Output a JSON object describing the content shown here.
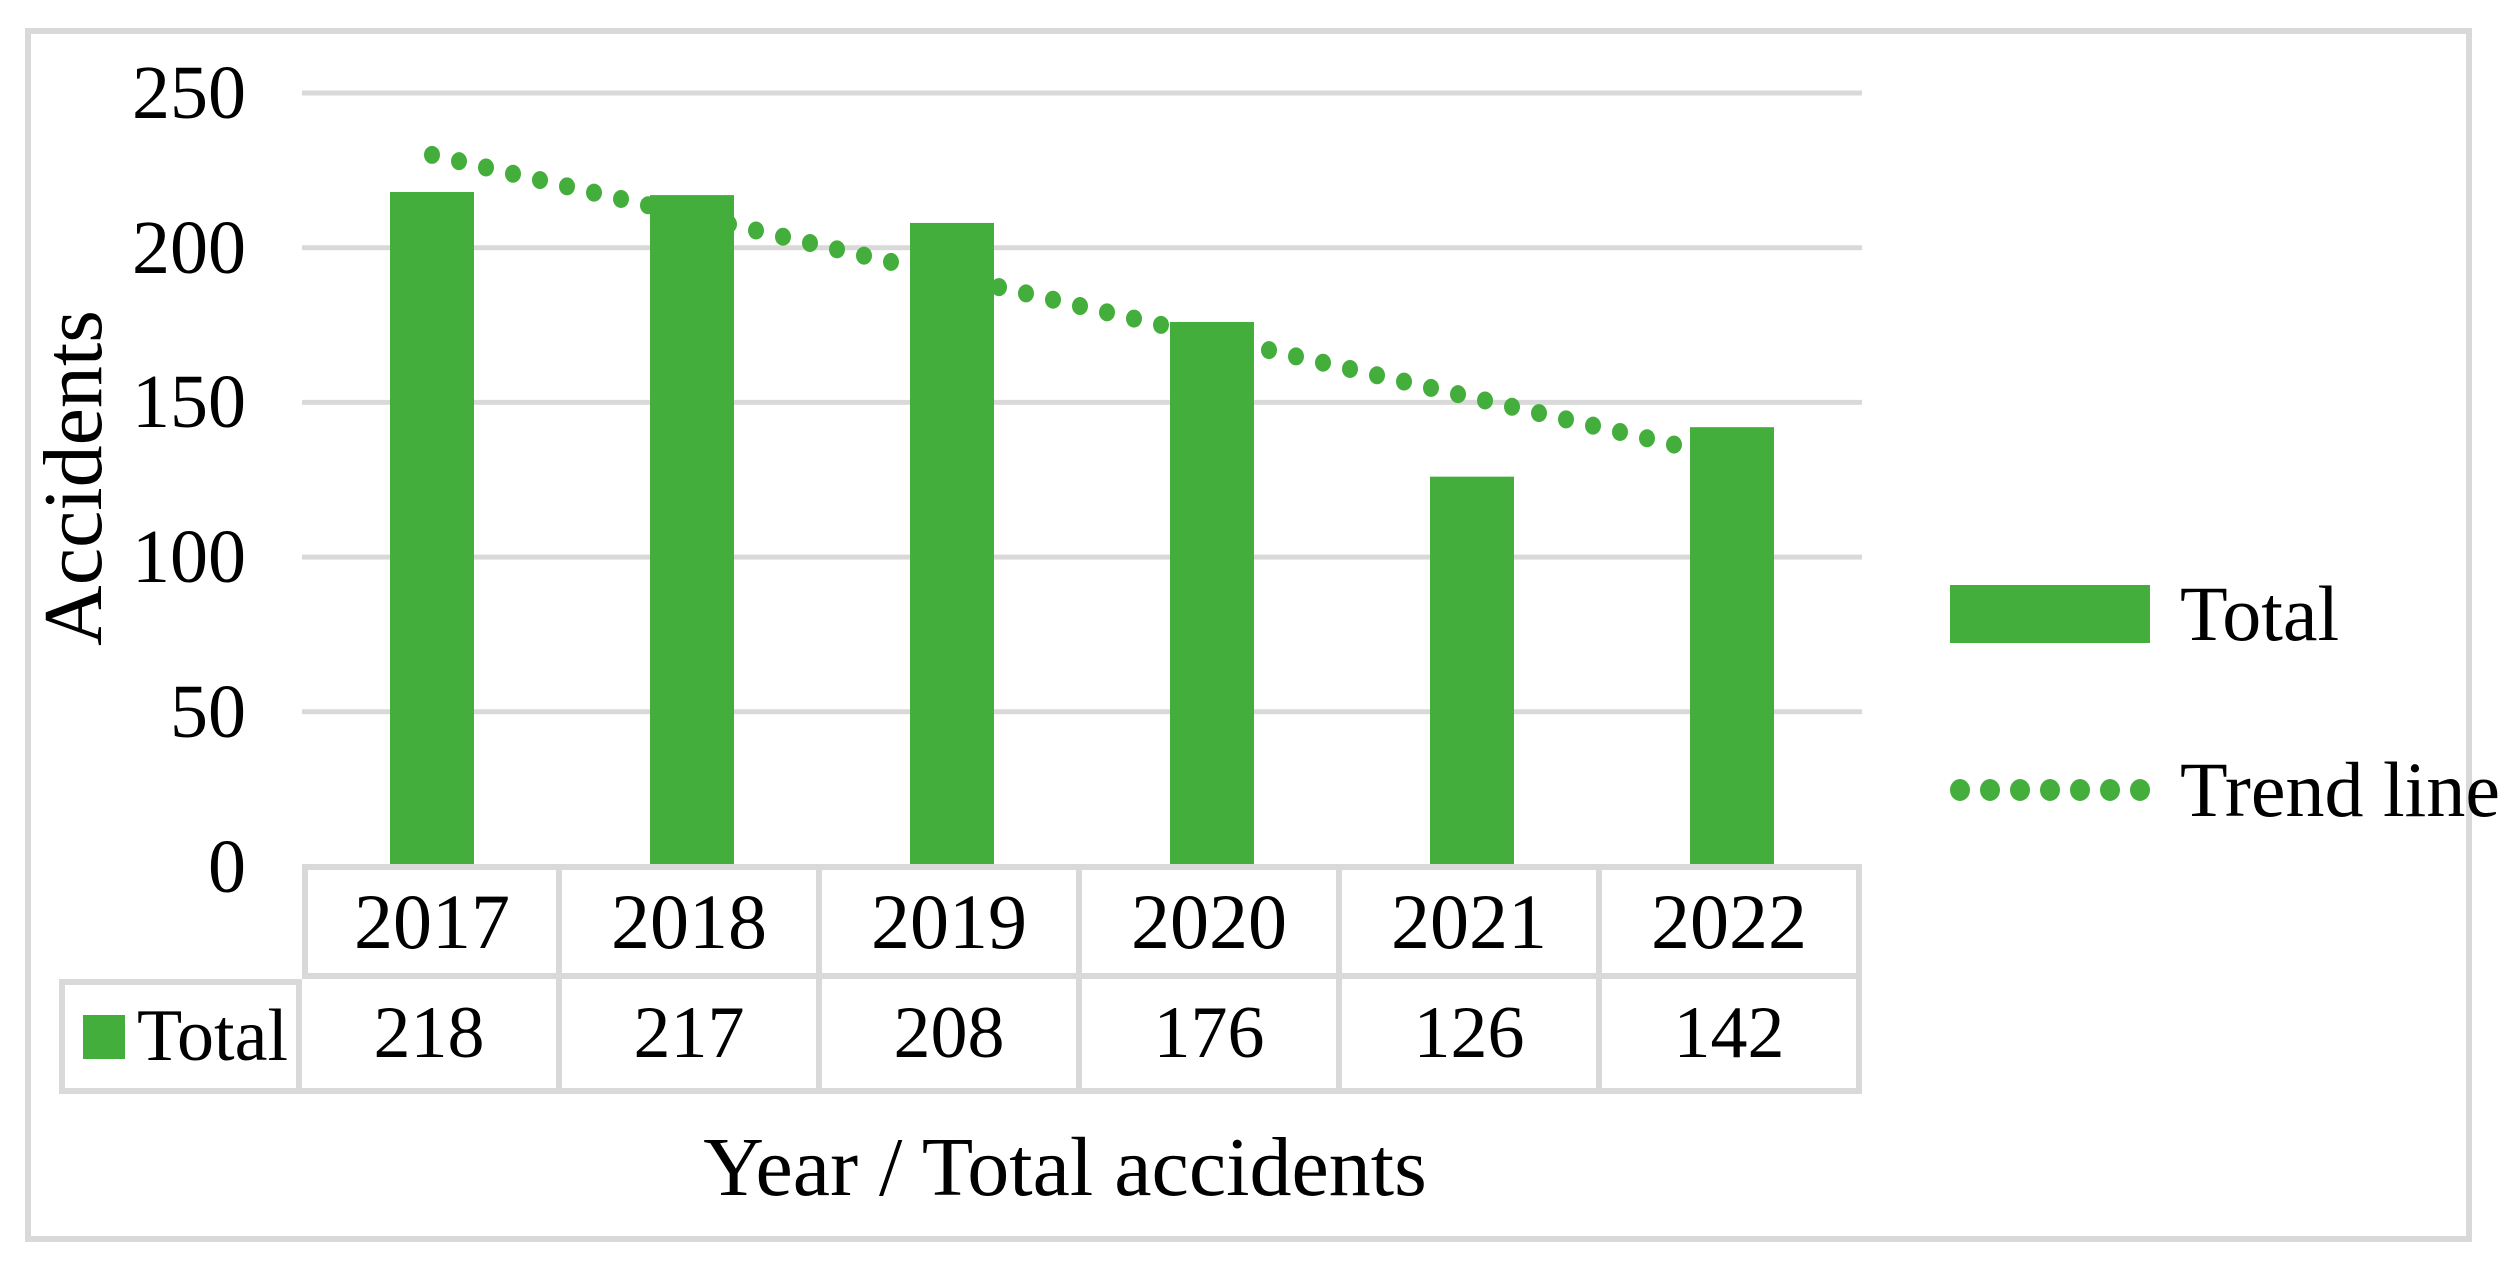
{
  "colors": {
    "series_green": "#43AE3C",
    "grid_gray": "#D9D9D9",
    "text": "#000000",
    "background": "#FFFFFF"
  },
  "chart_data": {
    "type": "bar",
    "categories": [
      "2017",
      "2018",
      "2019",
      "2020",
      "2021",
      "2022"
    ],
    "series": [
      {
        "name": "Total",
        "color": "#43AE3C",
        "values": [
          218,
          217,
          208,
          176,
          126,
          142
        ]
      }
    ],
    "trendline": {
      "label": "Trend line",
      "style": "dotted",
      "color": "#43AE3C",
      "start_value": 230,
      "end_value": 132
    },
    "title": "",
    "xlabel": "Year / Total accidents",
    "ylabel": "Accidents",
    "ylim": [
      0,
      250
    ],
    "ytick_step": 50,
    "yticks": [
      "250",
      "200",
      "150",
      "100",
      "50",
      "0"
    ],
    "grid": "horizontal",
    "legend_position": "right",
    "legend": [
      {
        "label": "Total",
        "marker": "filled-bar"
      },
      {
        "label": "Trend line",
        "marker": "dotted-line"
      }
    ],
    "data_table": {
      "row_header": "Total",
      "values": [
        "218",
        "217",
        "208",
        "176",
        "126",
        "142"
      ]
    }
  }
}
